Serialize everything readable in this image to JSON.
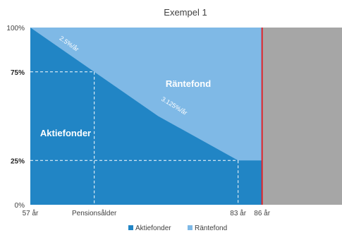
{
  "chart_data": {
    "type": "area",
    "title": "Exempel 1",
    "x_ticks": [
      {
        "label": "57 år",
        "x": 57
      },
      {
        "label": "Pensionsålder",
        "x": 65
      },
      {
        "label": "83 år",
        "x": 83
      },
      {
        "label": "86 år",
        "x": 86
      }
    ],
    "y_ticks": [
      {
        "label": "100%",
        "y": 100,
        "bold": false
      },
      {
        "label": "75%",
        "y": 75,
        "bold": true
      },
      {
        "label": "25%",
        "y": 25,
        "bold": true
      },
      {
        "label": "0%",
        "y": 0,
        "bold": false
      }
    ],
    "xlim": [
      57,
      96
    ],
    "ylim": [
      0,
      100
    ],
    "series": [
      {
        "name": "Aktiefonder",
        "color": "#2185c5",
        "points": [
          [
            57,
            100
          ],
          [
            65,
            75
          ],
          [
            73,
            50
          ],
          [
            83,
            25
          ],
          [
            86,
            25
          ]
        ]
      },
      {
        "name": "Räntefond",
        "color": "#7fb9e6",
        "points": [
          [
            57,
            0
          ],
          [
            65,
            25
          ],
          [
            73,
            50
          ],
          [
            83,
            75
          ],
          [
            86,
            75
          ]
        ]
      }
    ],
    "annotations": {
      "slope_1": "2.5%/år",
      "slope_2": "3.125%/år",
      "region_top": "Räntefond",
      "region_bottom": "Aktiefonder"
    },
    "end_marker_x": 86,
    "after_end_color": "#a6a6a6",
    "end_marker_color": "#e0232b",
    "legend_position": "bottom",
    "legend": [
      {
        "label": "Aktiefonder",
        "color": "#2185c5"
      },
      {
        "label": "Räntefond",
        "color": "#7fb9e6"
      }
    ]
  }
}
